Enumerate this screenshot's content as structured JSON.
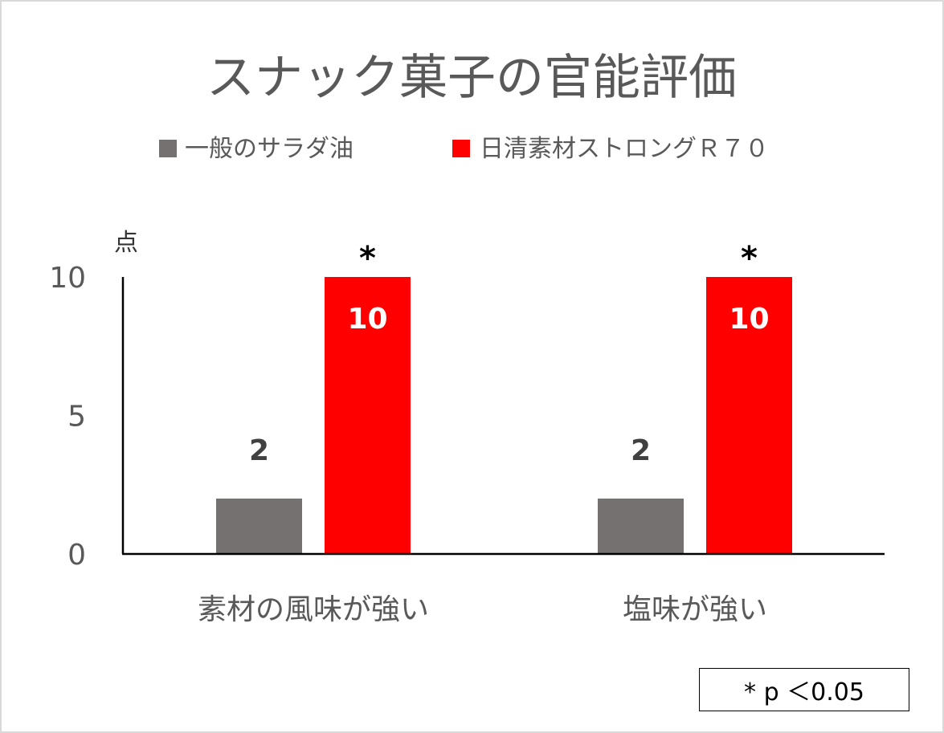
{
  "chart_data": {
    "type": "bar",
    "title": "スナック菓子の官能評価",
    "ylabel": "点",
    "ylim": [
      0,
      10
    ],
    "yticks": [
      "0",
      "5",
      "10"
    ],
    "categories": [
      "素材の風味が強い",
      "塩味が強い"
    ],
    "series": [
      {
        "name": "一般のサラダ油",
        "values": [
          2,
          2
        ],
        "color": "#767171",
        "label_color": "#404040",
        "labels": [
          "2",
          "2"
        ]
      },
      {
        "name": "日清素材ストロングＲ７０",
        "values": [
          10,
          10
        ],
        "color": "#ff0000",
        "label_color": "#ffffff",
        "labels": [
          "10",
          "10"
        ]
      }
    ],
    "significance_marks": [
      "*",
      "*"
    ],
    "legend": "top",
    "grid": false
  },
  "note": "* p ＜0.05"
}
